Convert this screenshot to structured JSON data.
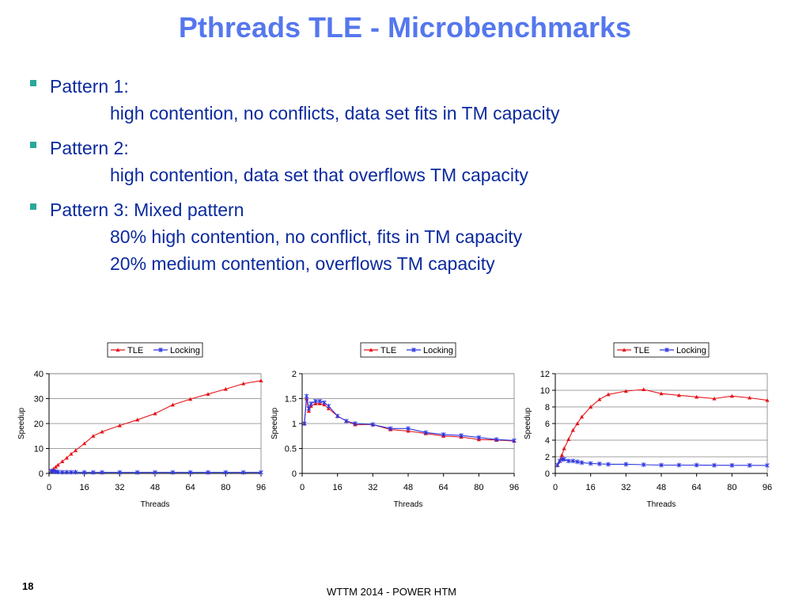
{
  "slide": {
    "title": "Pthreads TLE - Microbenchmarks",
    "bullets": [
      {
        "head": "Pattern 1:",
        "sub": [
          "high contention, no conflicts, data set fits in TM capacity"
        ]
      },
      {
        "head": "Pattern 2:",
        "sub": [
          "high contention, data set that overflows TM capacity"
        ]
      },
      {
        "head": "Pattern 3: Mixed pattern",
        "sub": [
          "80% high contention, no conflict, fits in TM capacity",
          "20% medium contention, overflows TM capacity"
        ]
      }
    ],
    "number": "18",
    "footer": "WTTM 2014 - POWER HTM"
  },
  "colors": {
    "tle": "#e8141a",
    "locking": "#2b35e0",
    "title": "#5577ee",
    "text": "#0b2a9e",
    "bullet": "#2aa89a"
  },
  "chart_data": [
    {
      "type": "line",
      "title": "",
      "xlabel": "Threads",
      "ylabel": "Speedup",
      "xlim": [
        0,
        96
      ],
      "ylim": [
        0,
        40
      ],
      "xticks": [
        0,
        16,
        32,
        48,
        64,
        80,
        96
      ],
      "yticks": [
        0,
        10,
        20,
        30,
        40
      ],
      "legend": "top-center",
      "grid": true,
      "series": [
        {
          "name": "TLE",
          "points": [
            [
              1,
              1
            ],
            [
              2,
              1.8
            ],
            [
              3,
              2.6
            ],
            [
              4,
              3.4
            ],
            [
              6,
              4.8
            ],
            [
              8,
              6.2
            ],
            [
              10,
              7.8
            ],
            [
              12,
              9.2
            ],
            [
              16,
              12
            ],
            [
              20,
              15
            ],
            [
              24,
              16.7
            ],
            [
              32,
              19.2
            ],
            [
              40,
              21.5
            ],
            [
              48,
              24
            ],
            [
              56,
              27.5
            ],
            [
              64,
              29.8
            ],
            [
              72,
              31.8
            ],
            [
              80,
              33.8
            ],
            [
              88,
              36
            ],
            [
              96,
              37.2
            ]
          ]
        },
        {
          "name": "Locking",
          "points": [
            [
              1,
              1
            ],
            [
              2,
              0.9
            ],
            [
              3,
              0.7
            ],
            [
              4,
              0.6
            ],
            [
              6,
              0.5
            ],
            [
              8,
              0.5
            ],
            [
              10,
              0.5
            ],
            [
              12,
              0.5
            ],
            [
              16,
              0.4
            ],
            [
              20,
              0.4
            ],
            [
              24,
              0.4
            ],
            [
              32,
              0.4
            ],
            [
              40,
              0.4
            ],
            [
              48,
              0.4
            ],
            [
              56,
              0.4
            ],
            [
              64,
              0.4
            ],
            [
              72,
              0.4
            ],
            [
              80,
              0.4
            ],
            [
              88,
              0.4
            ],
            [
              96,
              0.4
            ]
          ]
        }
      ]
    },
    {
      "type": "line",
      "title": "",
      "xlabel": "Threads",
      "ylabel": "Speedup",
      "xlim": [
        0,
        96
      ],
      "ylim": [
        0,
        2
      ],
      "xticks": [
        0,
        16,
        32,
        48,
        64,
        80,
        96
      ],
      "yticks": [
        0,
        0.5,
        1,
        1.5,
        2
      ],
      "legend": "top-center",
      "grid": true,
      "series": [
        {
          "name": "TLE",
          "points": [
            [
              1,
              1
            ],
            [
              2,
              1.5
            ],
            [
              3,
              1.25
            ],
            [
              4,
              1.35
            ],
            [
              6,
              1.4
            ],
            [
              8,
              1.4
            ],
            [
              10,
              1.38
            ],
            [
              12,
              1.3
            ],
            [
              16,
              1.15
            ],
            [
              20,
              1.05
            ],
            [
              24,
              0.98
            ],
            [
              32,
              0.98
            ],
            [
              40,
              0.88
            ],
            [
              48,
              0.85
            ],
            [
              56,
              0.8
            ],
            [
              64,
              0.75
            ],
            [
              72,
              0.73
            ],
            [
              80,
              0.68
            ],
            [
              88,
              0.67
            ],
            [
              96,
              0.65
            ]
          ]
        },
        {
          "name": "Locking",
          "points": [
            [
              1,
              1
            ],
            [
              2,
              1.55
            ],
            [
              3,
              1.3
            ],
            [
              4,
              1.4
            ],
            [
              6,
              1.45
            ],
            [
              8,
              1.45
            ],
            [
              10,
              1.42
            ],
            [
              12,
              1.35
            ],
            [
              16,
              1.15
            ],
            [
              20,
              1.05
            ],
            [
              24,
              1
            ],
            [
              32,
              0.98
            ],
            [
              40,
              0.9
            ],
            [
              48,
              0.9
            ],
            [
              56,
              0.82
            ],
            [
              64,
              0.78
            ],
            [
              72,
              0.76
            ],
            [
              80,
              0.72
            ],
            [
              88,
              0.68
            ],
            [
              96,
              0.66
            ]
          ]
        }
      ]
    },
    {
      "type": "line",
      "title": "",
      "xlabel": "Threads",
      "ylabel": "Speedup",
      "xlim": [
        0,
        96
      ],
      "ylim": [
        0,
        12
      ],
      "xticks": [
        0,
        16,
        32,
        48,
        64,
        80,
        96
      ],
      "yticks": [
        0,
        2,
        4,
        6,
        8,
        10,
        12
      ],
      "legend": "top-center",
      "grid": true,
      "series": [
        {
          "name": "TLE",
          "points": [
            [
              1,
              1
            ],
            [
              2,
              1.5
            ],
            [
              3,
              2.2
            ],
            [
              4,
              3
            ],
            [
              6,
              4.1
            ],
            [
              8,
              5.2
            ],
            [
              10,
              6
            ],
            [
              12,
              6.8
            ],
            [
              16,
              8
            ],
            [
              20,
              8.9
            ],
            [
              24,
              9.5
            ],
            [
              32,
              9.9
            ],
            [
              40,
              10.1
            ],
            [
              48,
              9.6
            ],
            [
              56,
              9.4
            ],
            [
              64,
              9.2
            ],
            [
              72,
              9
            ],
            [
              80,
              9.3
            ],
            [
              88,
              9.1
            ],
            [
              96,
              8.8
            ]
          ]
        },
        {
          "name": "Locking",
          "points": [
            [
              1,
              1
            ],
            [
              2,
              1.5
            ],
            [
              3,
              1.7
            ],
            [
              4,
              1.7
            ],
            [
              6,
              1.5
            ],
            [
              8,
              1.5
            ],
            [
              10,
              1.4
            ],
            [
              12,
              1.3
            ],
            [
              16,
              1.2
            ],
            [
              20,
              1.15
            ],
            [
              24,
              1.1
            ],
            [
              32,
              1.1
            ],
            [
              40,
              1.05
            ],
            [
              48,
              1
            ],
            [
              56,
              1
            ],
            [
              64,
              1
            ],
            [
              72,
              0.98
            ],
            [
              80,
              0.97
            ],
            [
              88,
              0.97
            ],
            [
              96,
              0.96
            ]
          ]
        }
      ]
    }
  ]
}
